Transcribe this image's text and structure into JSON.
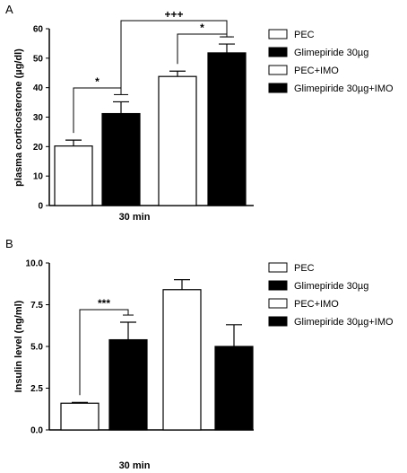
{
  "chart_data": [
    {
      "panel_label": "A",
      "type": "bar",
      "ylabel": "plasma corticosterone (µg/dl)",
      "xlabel": "30 min",
      "ylim": [
        0,
        60
      ],
      "yticks": [
        "0",
        "10",
        "20",
        "30",
        "40",
        "50",
        "60"
      ],
      "categories": [
        "PEC",
        "Glimepiride 30µg",
        "PEC+IMO",
        "Glimepiride 30µg+IMO"
      ],
      "fills": [
        "white",
        "black",
        "white",
        "black"
      ],
      "values": [
        20.2,
        31.2,
        43.8,
        51.8
      ],
      "errors": [
        2.0,
        4.0,
        1.8,
        3.0
      ],
      "significance": [
        {
          "from": 0,
          "to": 1,
          "label": "*"
        },
        {
          "from": 2,
          "to": 3,
          "label": "*"
        },
        {
          "from": 1,
          "to": 3,
          "label": "+++"
        }
      ],
      "legend": [
        "PEC",
        "Glimepiride 30µg",
        "PEC+IMO",
        "Glimepiride 30µg+IMO"
      ],
      "legend_position": "right"
    },
    {
      "panel_label": "B",
      "type": "bar",
      "ylabel": "Insulin level (ng/ml)",
      "xlabel": "30 min",
      "ylim": [
        0,
        10
      ],
      "yticks": [
        "0.0",
        "2.5",
        "5.0",
        "7.5",
        "10.0"
      ],
      "categories": [
        "PEC",
        "Glimepiride 30µg",
        "PEC+IMO",
        "Glimepiride 30µg+IMO"
      ],
      "fills": [
        "white",
        "black",
        "white",
        "black"
      ],
      "values": [
        1.6,
        5.4,
        8.4,
        5.0
      ],
      "errors": [
        0.05,
        1.05,
        0.6,
        1.3
      ],
      "significance": [
        {
          "from": 0,
          "to": 1,
          "label": "***"
        }
      ],
      "legend": [
        "PEC",
        "Glimepiride 30µg",
        "PEC+IMO",
        "Glimepiride 30µg+IMO"
      ],
      "legend_position": "right"
    }
  ]
}
